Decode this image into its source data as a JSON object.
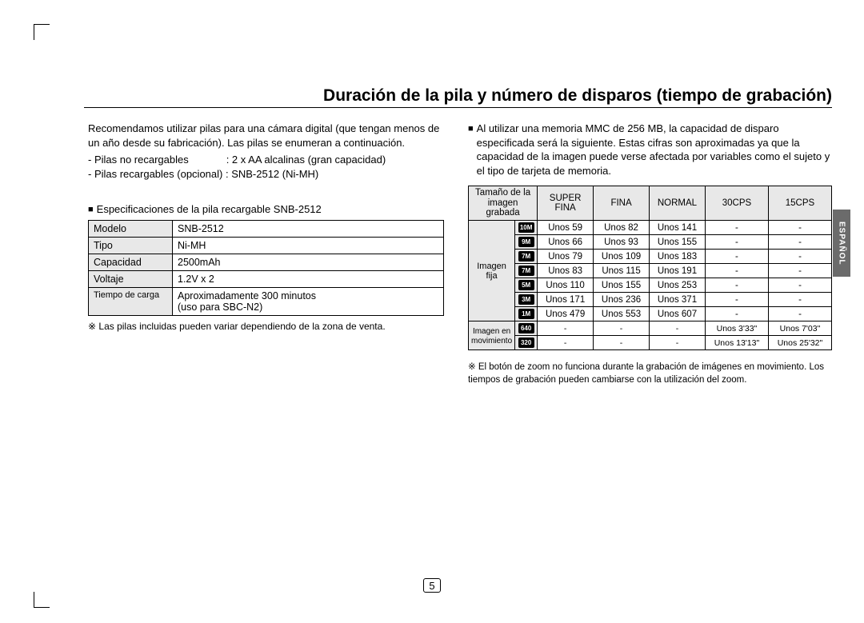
{
  "lang_tab": "ESPAÑOL",
  "title": "Duración de la pila y número de disparos (tiempo de grabación)",
  "left": {
    "intro": "Recomendamos utilizar pilas para una cámara digital (que tengan menos de un año desde su fabricación). Las pilas se enumeran a continuación.",
    "line1_label": "- Pilas no recargables",
    "line1_value": ": 2 x AA alcalinas (gran capacidad)",
    "line2": "- Pilas recargables (opcional) : SNB-2512 (Ni-MH)",
    "spec_heading": "Especificaciones de la pila recargable SNB-2512",
    "spec": {
      "rows": [
        {
          "label": "Modelo",
          "value": "SNB-2512"
        },
        {
          "label": "Tipo",
          "value": "Ni-MH"
        },
        {
          "label": "Capacidad",
          "value": "2500mAh"
        },
        {
          "label": "Voltaje",
          "value": "1.2V x 2"
        },
        {
          "label": "Tiempo de carga",
          "value": "Aproximadamente 300 minutos (uso para SBC-N2)",
          "label_small": true
        }
      ]
    },
    "note": "※ Las pilas incluidas pueden variar dependiendo de la zona de venta."
  },
  "right": {
    "intro": "Al utilizar una memoria MMC de 256 MB, la capacidad de disparo especificada será la siguiente. Estas cifras son aproximadas ya que la capacidad de la imagen puede verse afectada por variables como el sujeto y el tipo de tarjeta de memoria.",
    "table": {
      "header_left_top": "Tamaño de la",
      "header_left_bottom": "imagen grabada",
      "cols": [
        "SUPER FINA",
        "FINA",
        "NORMAL",
        "30CPS",
        "15CPS"
      ],
      "group1_label": "Imagen fija",
      "group1_icons": [
        "10M",
        "9M",
        "7M",
        "7M",
        "5M",
        "3M",
        "1M"
      ],
      "group1_rows": [
        [
          "Unos 59",
          "Unos 82",
          "Unos 141",
          "-",
          "-"
        ],
        [
          "Unos 66",
          "Unos 93",
          "Unos 155",
          "-",
          "-"
        ],
        [
          "Unos 79",
          "Unos 109",
          "Unos 183",
          "-",
          "-"
        ],
        [
          "Unos 83",
          "Unos 115",
          "Unos 191",
          "-",
          "-"
        ],
        [
          "Unos 110",
          "Unos 155",
          "Unos 253",
          "-",
          "-"
        ],
        [
          "Unos 171",
          "Unos 236",
          "Unos 371",
          "-",
          "-"
        ],
        [
          "Unos 479",
          "Unos 553",
          "Unos 607",
          "-",
          "-"
        ]
      ],
      "group2_label": "Imagen en movimiento",
      "group2_icons": [
        "640",
        "320"
      ],
      "group2_rows": [
        [
          "-",
          "-",
          "-",
          "Unos 3'33\"",
          "Unos 7'03\""
        ],
        [
          "-",
          "-",
          "-",
          "Unos 13'13\"",
          "Unos 25'32\""
        ]
      ]
    },
    "footnote": "※ El botón de zoom no funciona durante la grabación de imágenes en movimiento. Los tiempos de grabación pueden cambiarse con la utilización del zoom."
  },
  "page_number": "5",
  "colors": {
    "text": "#000000",
    "bg": "#ffffff",
    "header_bg": "#e8e8e8",
    "tab_bg": "#6b6b6b",
    "tab_fg": "#ffffff",
    "icon_bg": "#000000",
    "icon_fg": "#ffffff"
  }
}
